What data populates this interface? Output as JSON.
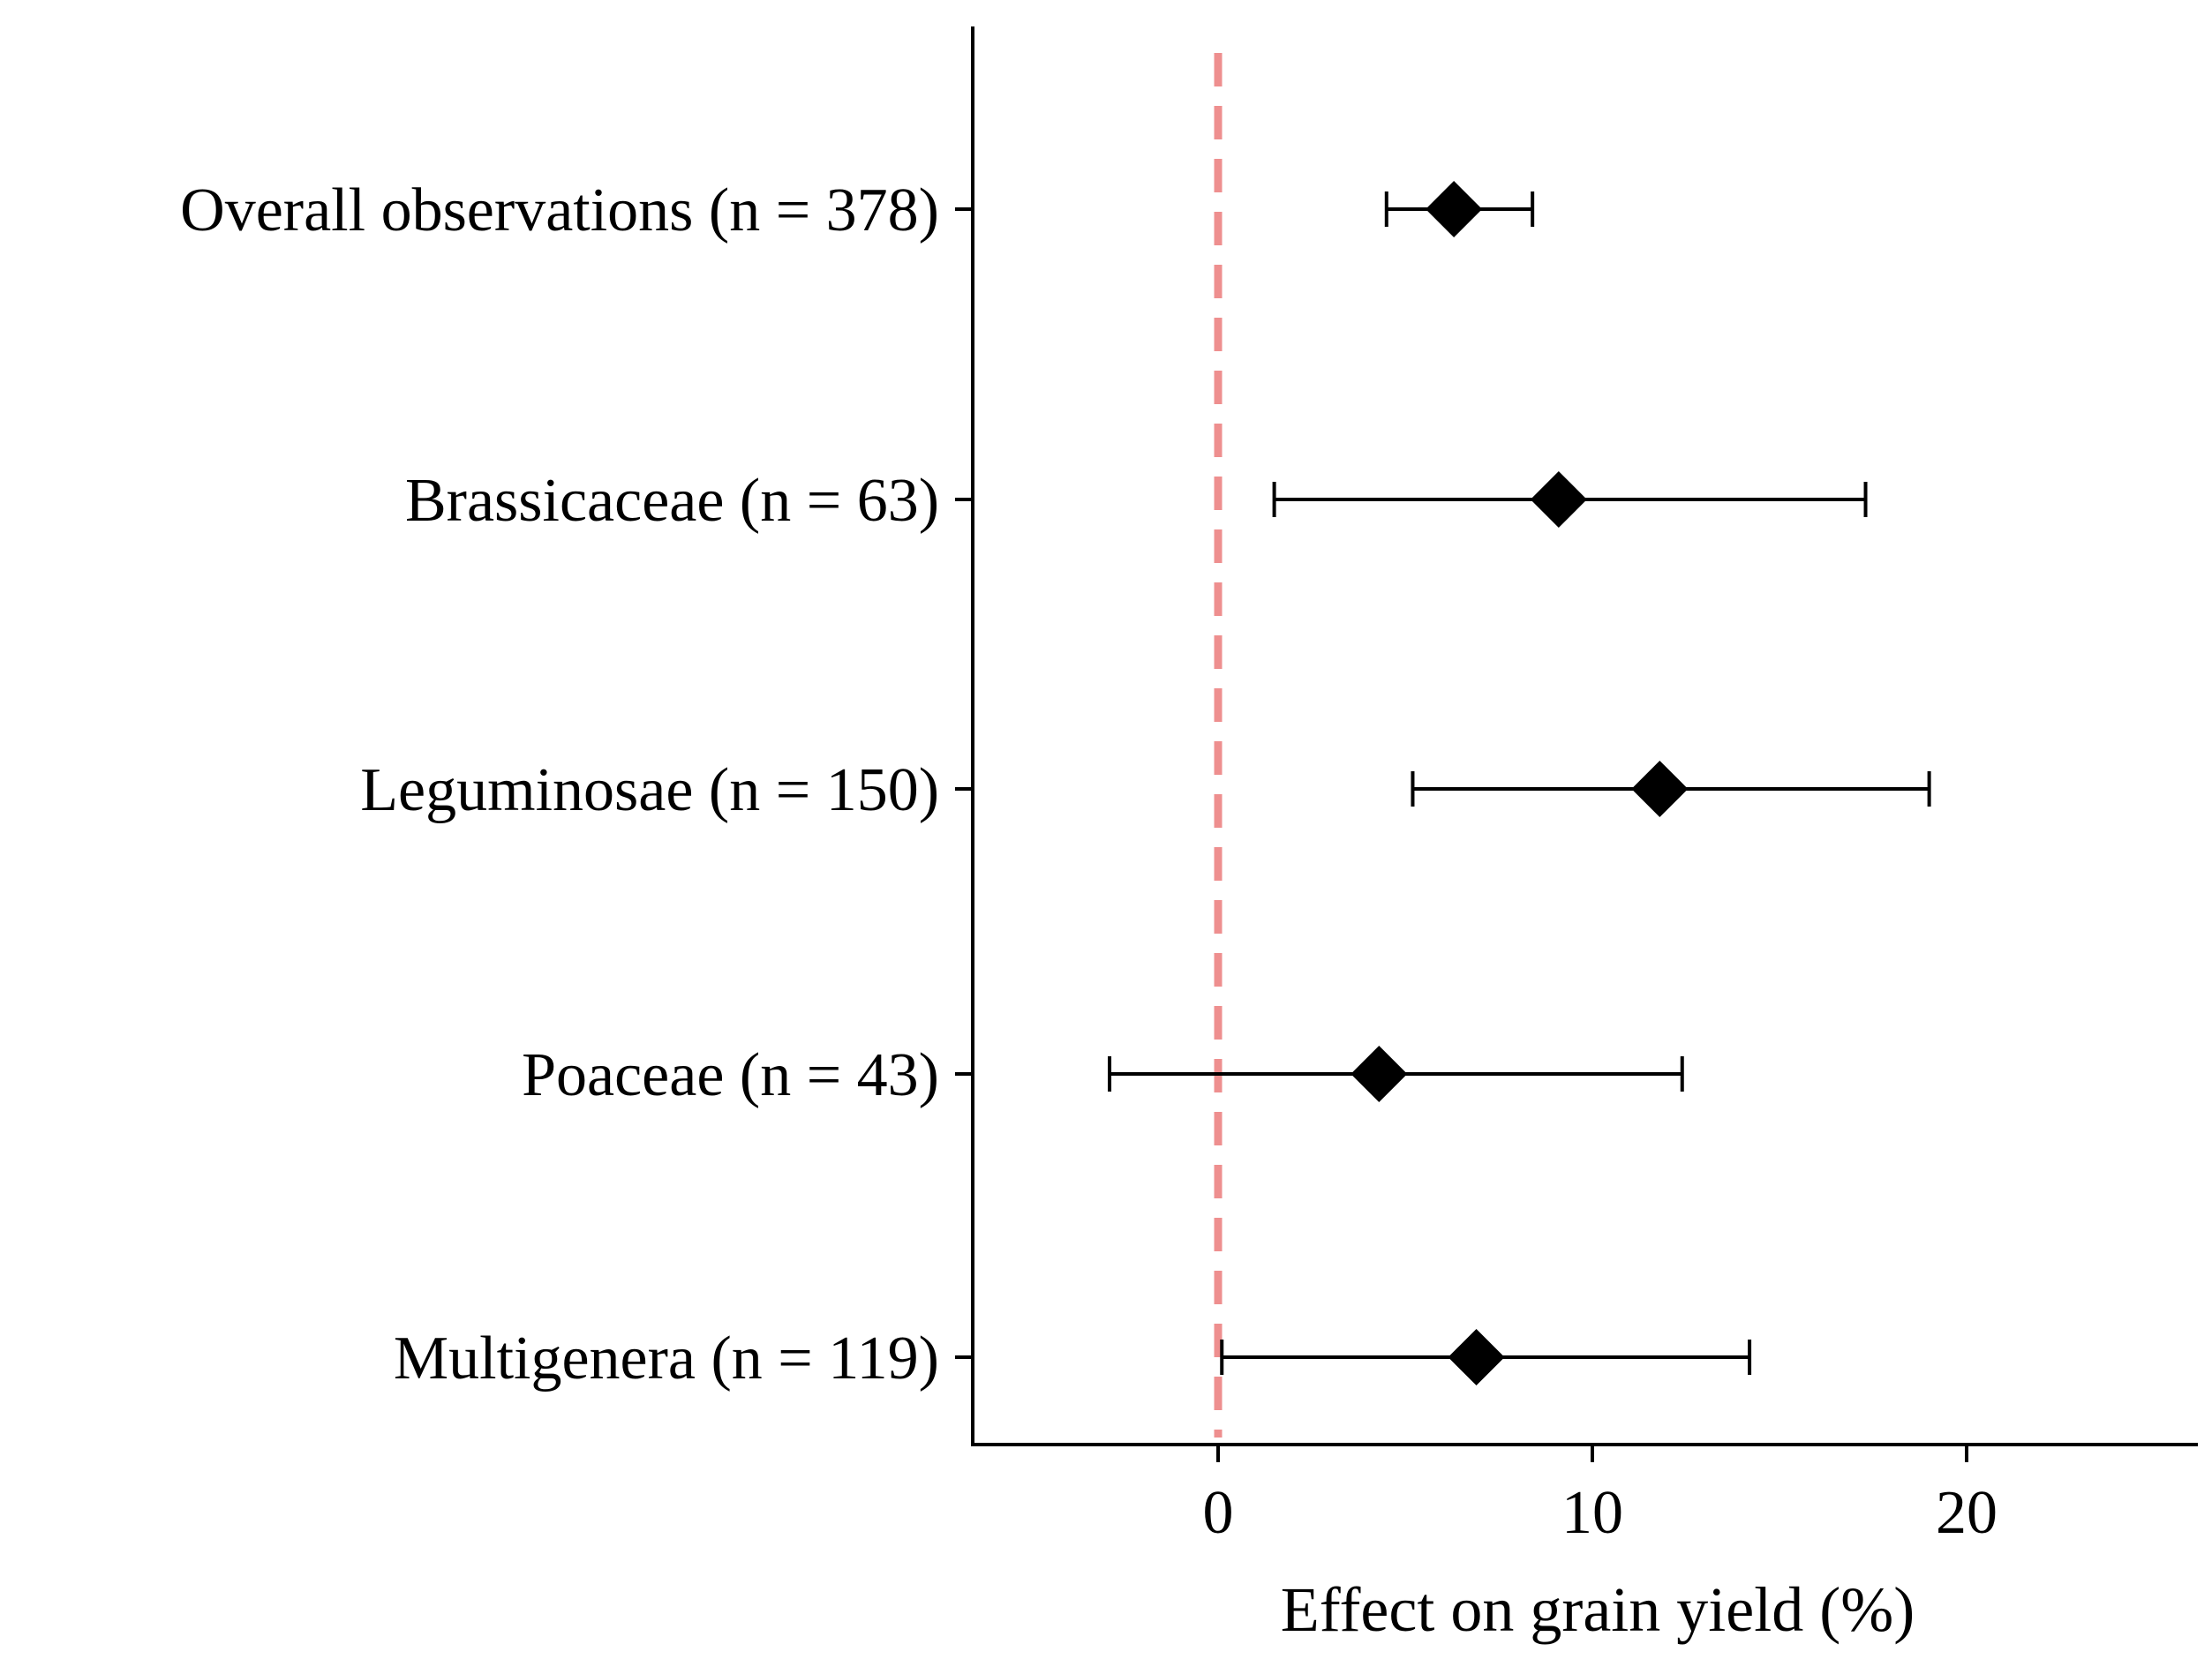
{
  "chart_data": {
    "type": "forest",
    "title": "",
    "xlabel": "Effect on grain yield (%)",
    "ylabel": "",
    "xlim": [
      -6.5,
      26.3
    ],
    "xticks": [
      0,
      10,
      20
    ],
    "reference_line": {
      "x": 0,
      "style": "dashed",
      "color": "#ee8f8f"
    },
    "categories": [
      "Overall observations (n = 378)",
      "Brassicaceae (n = 63)",
      "Leguminosae (n = 150)",
      "Poaceae (n = 43)",
      "Multigenera (n = 119)"
    ],
    "estimates": [
      6.3,
      9.1,
      11.8,
      4.3,
      6.9
    ],
    "ci_lower": [
      4.5,
      1.5,
      5.2,
      -2.9,
      0.1
    ],
    "ci_upper": [
      8.4,
      17.3,
      19.0,
      12.4,
      14.2
    ],
    "colors": {
      "marker": "#000000",
      "axis": "#000000",
      "reference": "#ee8f8f"
    }
  }
}
